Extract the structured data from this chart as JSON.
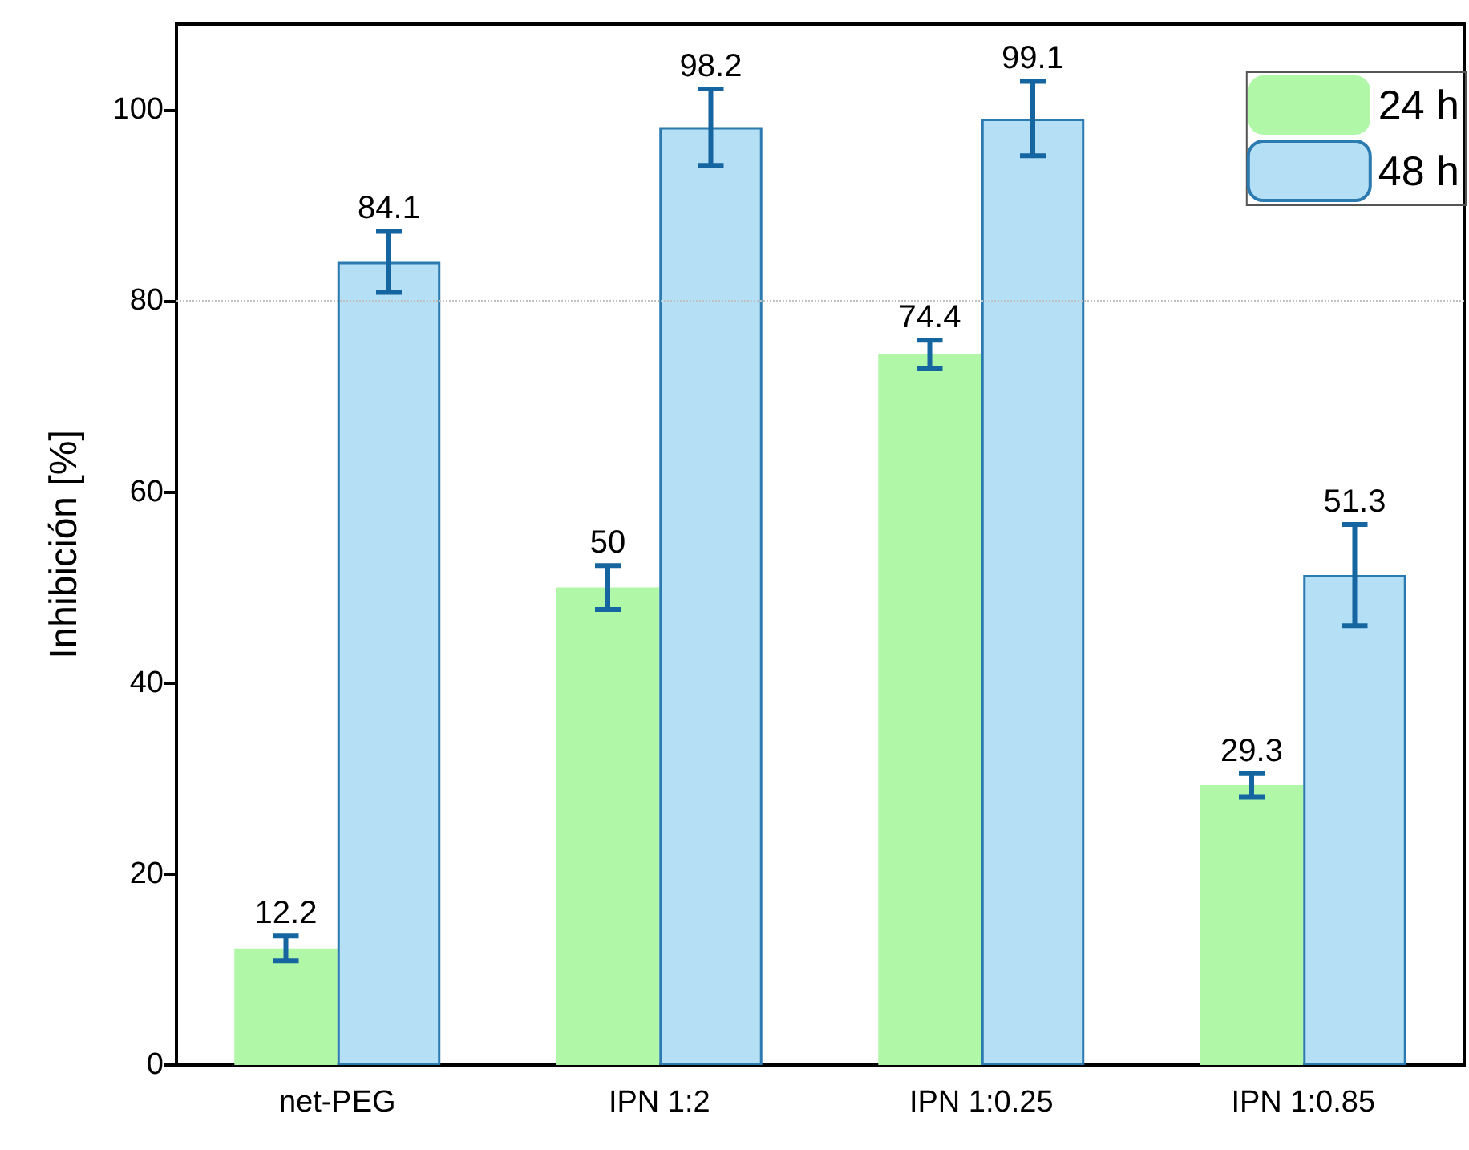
{
  "chart_data": {
    "type": "bar",
    "ylabel": "Inhibición [%]",
    "categories": [
      "net-PEG",
      "IPN 1:2",
      "IPN 1:0.25",
      "IPN 1:0.85"
    ],
    "series": [
      {
        "name": "24 h",
        "color": "#b1f7a8",
        "values": [
          12.2,
          50,
          74.4,
          29.3
        ],
        "errors": [
          1.3,
          2.3,
          1.5,
          1.2
        ]
      },
      {
        "name": "48 h",
        "color": "#b5dff5",
        "values": [
          84.1,
          98.2,
          99.1,
          51.3
        ],
        "errors": [
          3.2,
          4,
          3.9,
          5.3
        ]
      }
    ],
    "ylim": [
      0,
      109
    ],
    "yticks": [
      0,
      20,
      40,
      60,
      80,
      100
    ],
    "ref_lines": [
      {
        "axis": "y",
        "value": 80,
        "color": "#c0c0c0",
        "line_style": "dotted"
      }
    ],
    "data_labels": true,
    "legend": "top right",
    "grid": false
  }
}
